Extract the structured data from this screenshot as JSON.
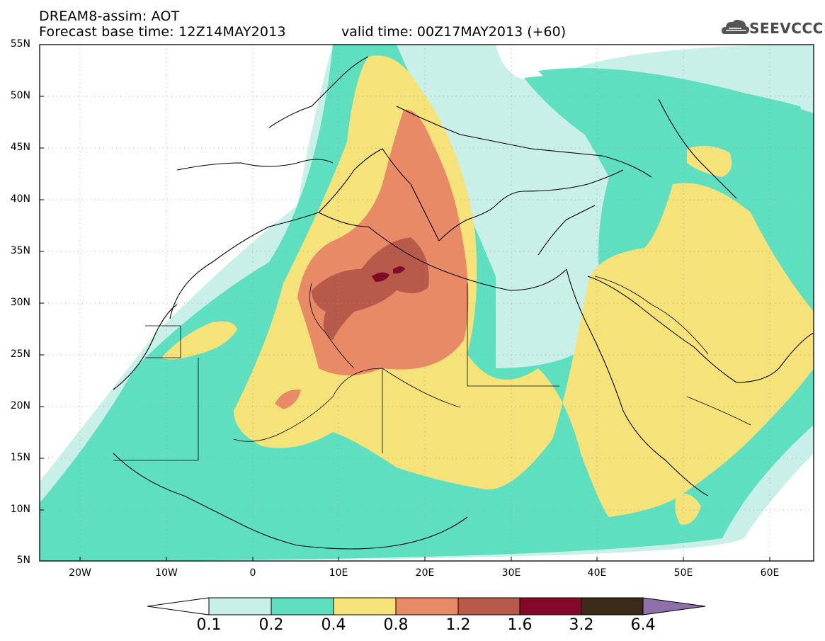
{
  "header": {
    "title": "DREAM8-assim: AOT",
    "base_time": "Forecast base time: 12Z14MAY2013",
    "valid_time": "valid time: 00Z17MAY2013 (+60)"
  },
  "logo": {
    "text": "SEEVCCC",
    "icon": "cloud-icon"
  },
  "map": {
    "projection": "lat-lon",
    "lon_range": [
      -25,
      65
    ],
    "lat_range": [
      5,
      55
    ],
    "lat_labels": [
      "55N",
      "50N",
      "45N",
      "40N",
      "35N",
      "30N",
      "25N",
      "20N",
      "15N",
      "10N",
      "5N"
    ],
    "lon_labels": [
      "20W",
      "10W",
      "0",
      "10E",
      "20E",
      "30E",
      "40E",
      "50E",
      "60E"
    ],
    "field": "AOT"
  },
  "colorbar": {
    "levels": [
      "0.1",
      "0.2",
      "0.4",
      "0.8",
      "1.2",
      "1.6",
      "3.2",
      "6.4"
    ],
    "colors": [
      "#ffffff",
      "#c8f0e8",
      "#5ee0c0",
      "#f5e37a",
      "#e88a66",
      "#b85a4a",
      "#820a28",
      "#3a2a18",
      "#9070a8"
    ]
  }
}
